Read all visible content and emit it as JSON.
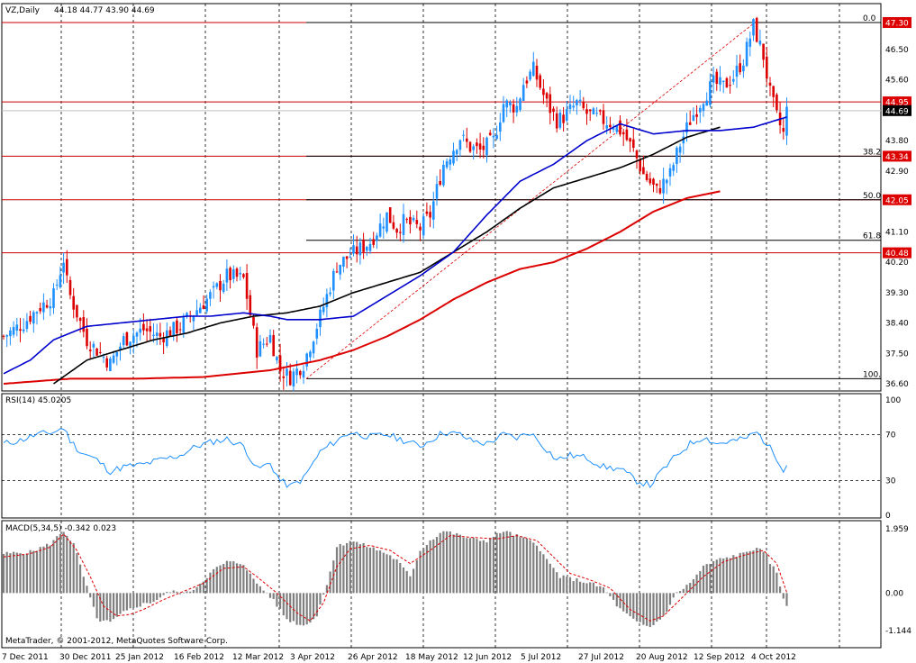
{
  "header": {
    "symbol_label": "VZ,Daily",
    "ohlc": "44.18 44.77 43.90 44.69"
  },
  "footer": {
    "copyright": "MetaTrader, © 2001-2012, MetaQuotes Software Corp."
  },
  "colors": {
    "bull_candle": "#1e90ff",
    "bear_candle": "#dd0000",
    "ma_blue": "#0000cc",
    "ma_black": "#000000",
    "ma_red": "#dd0000",
    "fib_line": "#dd0000",
    "hline_red": "#cc0000",
    "rsi_line": "#1e90ff",
    "macd_hist": "#7f7f7f",
    "macd_signal": "#dd0000",
    "price_tag_red": "#dd0000"
  },
  "chart_data": [
    {
      "type": "candlestick",
      "title": "VZ,Daily",
      "ylim": [
        36.6,
        47.5
      ],
      "y_ticks": [
        "47.30",
        "46.50",
        "45.60",
        "44.69",
        "43.80",
        "42.90",
        "42.05",
        "41.10",
        "40.20",
        "39.30",
        "38.40",
        "37.50",
        "36.60"
      ],
      "x_ticks": [
        "7 Dec 2011",
        "30 Dec 2011",
        "25 Jan 2012",
        "16 Feb 2012",
        "12 Mar 2012",
        "3 Apr 2012",
        "26 Apr 2012",
        "18 May 2012",
        "12 Jun 2012",
        "5 Jul 2012",
        "27 Jul 2012",
        "20 Aug 2012",
        "12 Sep 2012",
        "4 Oct 2012"
      ],
      "horizontal_levels": [
        {
          "value": 47.3,
          "tag": "47.30"
        },
        {
          "value": 44.95,
          "tag": "44.95"
        },
        {
          "value": 43.34,
          "tag": "43.34"
        },
        {
          "value": 42.05,
          "tag": "42.05"
        },
        {
          "value": 40.48,
          "tag": "40.48"
        }
      ],
      "current_price": {
        "value": 44.69,
        "tag": "44.69"
      },
      "fibonacci": {
        "high": 47.3,
        "low": 36.75,
        "levels": [
          {
            "label": "0.0",
            "value": 47.3
          },
          {
            "label": "38.2",
            "value": 43.34
          },
          {
            "label": "50.0",
            "value": 42.05
          },
          {
            "label": "61.8",
            "value": 40.85
          },
          {
            "label": "100.0",
            "value": 36.75
          }
        ]
      },
      "ma_blue": [
        [
          0,
          36.9
        ],
        [
          8,
          37.3
        ],
        [
          15,
          37.9
        ],
        [
          25,
          38.3
        ],
        [
          35,
          38.4
        ],
        [
          45,
          38.5
        ],
        [
          55,
          38.6
        ],
        [
          62,
          38.6
        ],
        [
          72,
          38.7
        ],
        [
          80,
          38.6
        ],
        [
          85,
          38.5
        ],
        [
          95,
          38.5
        ],
        [
          105,
          38.6
        ],
        [
          115,
          39.2
        ],
        [
          125,
          39.8
        ],
        [
          135,
          40.5
        ],
        [
          145,
          41.6
        ],
        [
          155,
          42.6
        ],
        [
          165,
          43.1
        ],
        [
          175,
          43.8
        ],
        [
          185,
          44.3
        ],
        [
          195,
          44.0
        ],
        [
          205,
          44.1
        ],
        [
          215,
          44.1
        ],
        [
          225,
          44.2
        ],
        [
          235,
          44.5
        ]
      ],
      "ma_black": [
        [
          15,
          36.6
        ],
        [
          25,
          37.3
        ],
        [
          35,
          37.6
        ],
        [
          45,
          37.9
        ],
        [
          55,
          38.1
        ],
        [
          65,
          38.4
        ],
        [
          75,
          38.6
        ],
        [
          85,
          38.7
        ],
        [
          95,
          38.9
        ],
        [
          105,
          39.3
        ],
        [
          115,
          39.6
        ],
        [
          125,
          39.9
        ],
        [
          135,
          40.5
        ],
        [
          145,
          41.1
        ],
        [
          155,
          41.8
        ],
        [
          165,
          42.4
        ],
        [
          175,
          42.7
        ],
        [
          185,
          43.0
        ],
        [
          195,
          43.4
        ],
        [
          205,
          43.9
        ],
        [
          215,
          44.2
        ]
      ],
      "ma_red": [
        [
          0,
          36.6
        ],
        [
          20,
          36.75
        ],
        [
          40,
          36.75
        ],
        [
          60,
          36.8
        ],
        [
          80,
          37.0
        ],
        [
          95,
          37.3
        ],
        [
          105,
          37.6
        ],
        [
          115,
          38.0
        ],
        [
          125,
          38.5
        ],
        [
          135,
          39.1
        ],
        [
          145,
          39.6
        ],
        [
          155,
          40.0
        ],
        [
          165,
          40.2
        ],
        [
          175,
          40.6
        ],
        [
          185,
          41.1
        ],
        [
          195,
          41.7
        ],
        [
          205,
          42.1
        ],
        [
          215,
          42.3
        ]
      ],
      "keypoints": [
        [
          0,
          38.0
        ],
        [
          6,
          38.4
        ],
        [
          10,
          38.8
        ],
        [
          15,
          39.2
        ],
        [
          18,
          40.3
        ],
        [
          19,
          39.6
        ],
        [
          20,
          39.2
        ],
        [
          25,
          37.9
        ],
        [
          30,
          37.4
        ],
        [
          32,
          37.2
        ],
        [
          36,
          37.9
        ],
        [
          42,
          38.2
        ],
        [
          47,
          38.0
        ],
        [
          53,
          38.3
        ],
        [
          58,
          38.8
        ],
        [
          63,
          39.3
        ],
        [
          67,
          39.8
        ],
        [
          72,
          39.7
        ],
        [
          76,
          37.6
        ],
        [
          80,
          38.0
        ],
        [
          83,
          37.0
        ],
        [
          86,
          36.8
        ],
        [
          90,
          37.2
        ],
        [
          95,
          38.6
        ],
        [
          100,
          40.1
        ],
        [
          104,
          40.4
        ],
        [
          110,
          40.8
        ],
        [
          115,
          41.6
        ],
        [
          118,
          41.2
        ],
        [
          120,
          41.4
        ],
        [
          125,
          41.2
        ],
        [
          128,
          41.6
        ],
        [
          132,
          43.1
        ],
        [
          137,
          43.9
        ],
        [
          140,
          43.6
        ],
        [
          143,
          43.5
        ],
        [
          147,
          43.8
        ],
        [
          150,
          44.9
        ],
        [
          154,
          44.8
        ],
        [
          156,
          45.5
        ],
        [
          159,
          45.9
        ],
        [
          163,
          44.9
        ],
        [
          166,
          44.4
        ],
        [
          168,
          44.5
        ],
        [
          172,
          44.9
        ],
        [
          175,
          44.6
        ],
        [
          180,
          44.4
        ],
        [
          183,
          44.3
        ],
        [
          186,
          44.0
        ],
        [
          189,
          43.5
        ],
        [
          192,
          42.8
        ],
        [
          196,
          42.3
        ],
        [
          200,
          42.8
        ],
        [
          203,
          43.7
        ],
        [
          206,
          44.4
        ],
        [
          210,
          45.1
        ],
        [
          213,
          45.5
        ],
        [
          216,
          45.4
        ],
        [
          219,
          45.7
        ],
        [
          222,
          46.2
        ],
        [
          225,
          47.2
        ],
        [
          228,
          46.3
        ],
        [
          230,
          45.2
        ],
        [
          232,
          44.5
        ],
        [
          234,
          44.0
        ],
        [
          235,
          44.69
        ]
      ]
    },
    {
      "type": "line",
      "title": "RSI(14) 45.0205",
      "ylim": [
        0,
        100
      ],
      "y_ticks": [
        "100",
        "70",
        "30",
        "0"
      ],
      "levels": [
        70,
        30
      ],
      "keypoints": [
        [
          0,
          62
        ],
        [
          5,
          65
        ],
        [
          10,
          70
        ],
        [
          15,
          72
        ],
        [
          18,
          76
        ],
        [
          20,
          65
        ],
        [
          23,
          55
        ],
        [
          28,
          48
        ],
        [
          32,
          38
        ],
        [
          36,
          42
        ],
        [
          42,
          44
        ],
        [
          47,
          48
        ],
        [
          53,
          52
        ],
        [
          58,
          60
        ],
        [
          63,
          64
        ],
        [
          67,
          66
        ],
        [
          72,
          60
        ],
        [
          76,
          40
        ],
        [
          80,
          45
        ],
        [
          83,
          30
        ],
        [
          86,
          25
        ],
        [
          90,
          32
        ],
        [
          95,
          55
        ],
        [
          100,
          65
        ],
        [
          104,
          72
        ],
        [
          110,
          68
        ],
        [
          115,
          70
        ],
        [
          120,
          65
        ],
        [
          125,
          60
        ],
        [
          128,
          65
        ],
        [
          132,
          72
        ],
        [
          137,
          70
        ],
        [
          140,
          65
        ],
        [
          145,
          62
        ],
        [
          150,
          70
        ],
        [
          154,
          67
        ],
        [
          158,
          72
        ],
        [
          162,
          60
        ],
        [
          166,
          48
        ],
        [
          170,
          52
        ],
        [
          175,
          50
        ],
        [
          180,
          42
        ],
        [
          185,
          40
        ],
        [
          190,
          30
        ],
        [
          194,
          26
        ],
        [
          198,
          40
        ],
        [
          202,
          52
        ],
        [
          206,
          62
        ],
        [
          210,
          68
        ],
        [
          214,
          62
        ],
        [
          218,
          64
        ],
        [
          222,
          66
        ],
        [
          226,
          72
        ],
        [
          229,
          62
        ],
        [
          232,
          50
        ],
        [
          234,
          40
        ],
        [
          235,
          45
        ]
      ]
    },
    {
      "type": "bar",
      "title": "MACD(5,34,5) -0.342 0.023",
      "ylim": [
        -1.144,
        1.959
      ],
      "y_ticks": [
        "1.959",
        "0.00",
        "-1.144"
      ],
      "hist_keypoints": [
        [
          0,
          1.2
        ],
        [
          8,
          1.25
        ],
        [
          14,
          1.5
        ],
        [
          18,
          1.9
        ],
        [
          21,
          1.5
        ],
        [
          24,
          0.5
        ],
        [
          28,
          -0.8
        ],
        [
          32,
          -0.9
        ],
        [
          36,
          -0.6
        ],
        [
          40,
          -0.4
        ],
        [
          45,
          -0.25
        ],
        [
          50,
          0.05
        ],
        [
          55,
          0.0
        ],
        [
          58,
          0.2
        ],
        [
          63,
          0.7
        ],
        [
          67,
          0.95
        ],
        [
          72,
          0.9
        ],
        [
          75,
          0.4
        ],
        [
          80,
          -0.1
        ],
        [
          85,
          -0.8
        ],
        [
          90,
          -1.0
        ],
        [
          94,
          -0.7
        ],
        [
          97,
          0.3
        ],
        [
          100,
          1.4
        ],
        [
          104,
          1.6
        ],
        [
          110,
          1.4
        ],
        [
          115,
          1.2
        ],
        [
          118,
          1.0
        ],
        [
          122,
          0.5
        ],
        [
          125,
          1.3
        ],
        [
          128,
          1.6
        ],
        [
          132,
          1.9
        ],
        [
          137,
          1.75
        ],
        [
          140,
          1.65
        ],
        [
          145,
          1.6
        ],
        [
          150,
          1.9
        ],
        [
          155,
          1.7
        ],
        [
          160,
          1.5
        ],
        [
          163,
          1.0
        ],
        [
          167,
          0.5
        ],
        [
          172,
          0.4
        ],
        [
          176,
          0.3
        ],
        [
          180,
          0.15
        ],
        [
          185,
          -0.5
        ],
        [
          190,
          -0.9
        ],
        [
          194,
          -1.05
        ],
        [
          198,
          -0.7
        ],
        [
          202,
          0.0
        ],
        [
          206,
          0.3
        ],
        [
          210,
          0.8
        ],
        [
          214,
          1.0
        ],
        [
          218,
          1.1
        ],
        [
          222,
          1.2
        ],
        [
          226,
          1.4
        ],
        [
          229,
          1.1
        ],
        [
          232,
          0.6
        ],
        [
          234,
          -0.15
        ],
        [
          235,
          -0.34
        ]
      ],
      "signal_keypoints": [
        [
          0,
          1.1
        ],
        [
          8,
          1.2
        ],
        [
          14,
          1.4
        ],
        [
          18,
          1.8
        ],
        [
          22,
          1.3
        ],
        [
          26,
          0.5
        ],
        [
          30,
          -0.4
        ],
        [
          34,
          -0.7
        ],
        [
          38,
          -0.65
        ],
        [
          42,
          -0.5
        ],
        [
          48,
          -0.2
        ],
        [
          54,
          0.05
        ],
        [
          60,
          0.3
        ],
        [
          66,
          0.75
        ],
        [
          72,
          0.8
        ],
        [
          76,
          0.5
        ],
        [
          82,
          0.0
        ],
        [
          88,
          -0.6
        ],
        [
          92,
          -0.85
        ],
        [
          96,
          -0.3
        ],
        [
          100,
          0.8
        ],
        [
          104,
          1.35
        ],
        [
          110,
          1.45
        ],
        [
          116,
          1.3
        ],
        [
          122,
          0.9
        ],
        [
          128,
          1.3
        ],
        [
          134,
          1.75
        ],
        [
          140,
          1.7
        ],
        [
          148,
          1.65
        ],
        [
          154,
          1.75
        ],
        [
          160,
          1.6
        ],
        [
          165,
          1.1
        ],
        [
          170,
          0.6
        ],
        [
          176,
          0.4
        ],
        [
          182,
          0.15
        ],
        [
          188,
          -0.5
        ],
        [
          194,
          -0.85
        ],
        [
          198,
          -0.7
        ],
        [
          204,
          -0.1
        ],
        [
          210,
          0.5
        ],
        [
          216,
          0.95
        ],
        [
          222,
          1.15
        ],
        [
          228,
          1.3
        ],
        [
          232,
          0.9
        ],
        [
          235,
          0.02
        ]
      ]
    }
  ]
}
